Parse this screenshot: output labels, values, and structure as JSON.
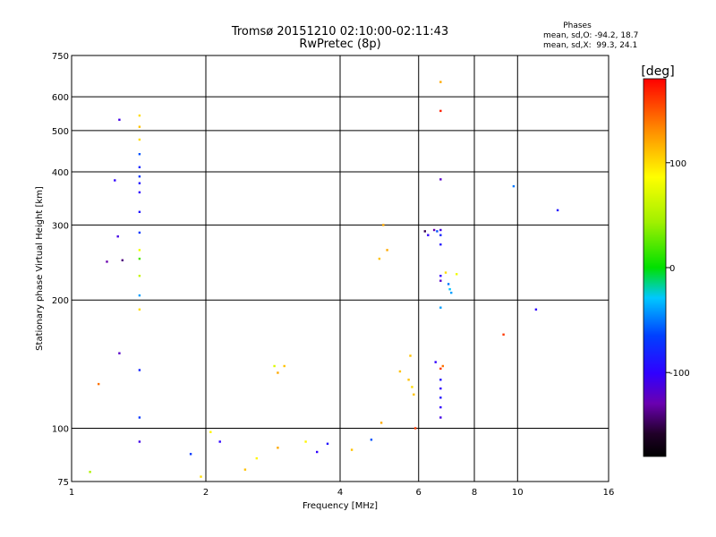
{
  "chart_data": {
    "type": "scatter",
    "title": "Tromsø 20151210 02:10:00-02:11:43",
    "subtitle": "RwPretec (8p)",
    "xlabel": "Frequency [MHz]",
    "ylabel": "Stationary phase Virtual Height [km]",
    "x_scale": "log",
    "y_scale": "log",
    "xlim": [
      1,
      16
    ],
    "ylim": [
      75,
      750
    ],
    "x_ticks": [
      1,
      2,
      4,
      6,
      8,
      10,
      16
    ],
    "x_tick_labels": [
      "1",
      "2",
      "4",
      "6",
      "8",
      "10",
      "16"
    ],
    "y_ticks": [
      75,
      100,
      200,
      300,
      400,
      500,
      600,
      750
    ],
    "y_tick_labels": [
      "75",
      "100",
      "200",
      "300",
      "400",
      "500",
      "600",
      "750"
    ],
    "grid": true,
    "phase_box": {
      "title": "Phases",
      "line_o": "mean, sd,O: -94.2, 18.7",
      "line_x": "mean, sd,X:  99.3, 24.1"
    },
    "colorbar": {
      "label": "[deg]",
      "range": [
        -180,
        180
      ],
      "ticks": [
        -100,
        0,
        100
      ],
      "tick_labels": [
        "-100",
        "0",
        "100"
      ]
    },
    "series": [
      {
        "values": [
          [
            1.28,
            530,
            -110
          ],
          [
            1.25,
            382,
            -100
          ],
          [
            1.27,
            282,
            -110
          ],
          [
            1.2,
            246,
            -130
          ],
          [
            1.3,
            248,
            -140
          ],
          [
            1.28,
            150,
            -120
          ],
          [
            1.42,
            542,
            100
          ],
          [
            1.42,
            510,
            110
          ],
          [
            1.42,
            476,
            100
          ],
          [
            1.42,
            440,
            -60
          ],
          [
            1.42,
            410,
            -80
          ],
          [
            1.42,
            390,
            -70
          ],
          [
            1.42,
            376,
            -90
          ],
          [
            1.42,
            358,
            -100
          ],
          [
            1.42,
            322,
            -90
          ],
          [
            1.42,
            288,
            -70
          ],
          [
            1.42,
            262,
            80
          ],
          [
            1.42,
            250,
            20
          ],
          [
            1.42,
            228,
            60
          ],
          [
            1.42,
            205,
            -40
          ],
          [
            1.42,
            190,
            100
          ],
          [
            1.42,
            137,
            -80
          ],
          [
            1.42,
            106,
            -70
          ],
          [
            1.42,
            93,
            -110
          ],
          [
            1.1,
            79,
            50
          ],
          [
            1.15,
            127,
            140
          ],
          [
            5.0,
            300,
            120
          ],
          [
            6.2,
            290,
            -150
          ],
          [
            6.3,
            284,
            -100
          ],
          [
            6.5,
            292,
            -130
          ],
          [
            6.6,
            290,
            -60
          ],
          [
            6.72,
            650,
            120
          ],
          [
            6.72,
            556,
            170
          ],
          [
            6.72,
            384,
            -120
          ],
          [
            6.72,
            292,
            -110
          ],
          [
            6.72,
            284,
            -80
          ],
          [
            6.72,
            270,
            -90
          ],
          [
            6.72,
            228,
            -100
          ],
          [
            6.72,
            222,
            -120
          ],
          [
            6.72,
            192,
            -40
          ],
          [
            6.72,
            130,
            -90
          ],
          [
            6.72,
            124,
            -100
          ],
          [
            6.72,
            118,
            -90
          ],
          [
            6.72,
            112,
            -100
          ],
          [
            6.72,
            106,
            -110
          ],
          [
            6.72,
            138,
            160
          ],
          [
            6.55,
            143,
            -100
          ],
          [
            6.8,
            140,
            140
          ],
          [
            7.0,
            218,
            -50
          ],
          [
            7.05,
            212,
            -30
          ],
          [
            7.1,
            208,
            -40
          ],
          [
            7.3,
            230,
            80
          ],
          [
            6.9,
            232,
            100
          ],
          [
            9.3,
            166,
            160
          ],
          [
            9.8,
            370,
            -50
          ],
          [
            11.0,
            190,
            -100
          ],
          [
            12.3,
            325,
            -90
          ],
          [
            1.85,
            87,
            -70
          ],
          [
            1.95,
            77,
            100
          ],
          [
            2.05,
            98,
            90
          ],
          [
            2.15,
            93,
            -100
          ],
          [
            2.45,
            80,
            110
          ],
          [
            2.6,
            85,
            90
          ],
          [
            2.85,
            140,
            70
          ],
          [
            2.9,
            135,
            120
          ],
          [
            2.9,
            90,
            120
          ],
          [
            3.0,
            140,
            110
          ],
          [
            3.35,
            93,
            90
          ],
          [
            3.55,
            88,
            -100
          ],
          [
            3.75,
            92,
            -90
          ],
          [
            4.25,
            89,
            110
          ],
          [
            4.7,
            94,
            -60
          ],
          [
            4.95,
            103,
            120
          ],
          [
            4.9,
            250,
            110
          ],
          [
            5.1,
            262,
            120
          ],
          [
            5.45,
            136,
            110
          ],
          [
            5.7,
            130,
            110
          ],
          [
            5.75,
            148,
            110
          ],
          [
            5.8,
            125,
            100
          ],
          [
            5.85,
            120,
            110
          ],
          [
            5.9,
            100,
            160
          ]
        ]
      }
    ]
  }
}
